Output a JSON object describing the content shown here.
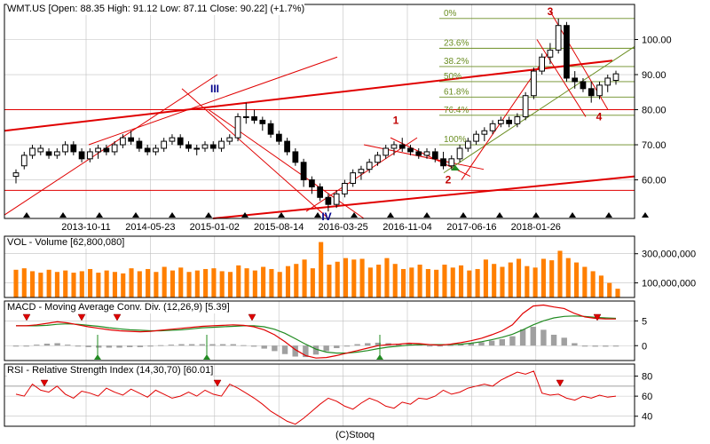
{
  "headers": {
    "price": "WMT.US [Open: 88.35 High: 91.12 Low: 87.11 Close: 90.22] (+1.7%)",
    "volume": "VOL - Volume [62,800,080]",
    "macd": "MACD - Moving Average Conv. Div. (12,26,9) [5.39]",
    "rsi": "RSI - Relative Strength Index (14,30,70) [60.01]"
  },
  "footer": "(C)Stooq",
  "colors": {
    "up": "#ffffff",
    "down": "#000000",
    "volume": "#ff7f00",
    "grid": "#c0c0c0",
    "trend": "#e00000",
    "fib": "#6b8e23",
    "macd": "#e00000",
    "signal": "#228b22",
    "hist": "#a0a0a0"
  },
  "chart_data": [
    {
      "type": "candlestick",
      "name": "WMT.US",
      "x_ticks": [
        "2013-10-11",
        "2014-05-23",
        "2015-01-02",
        "2015-08-14",
        "2016-03-25",
        "2016-11-04",
        "2017-06-16",
        "2018-01-26"
      ],
      "y_ticks": [
        60,
        70,
        80,
        90,
        100
      ],
      "ylim": [
        49,
        110
      ],
      "ohlc": [
        [
          61,
          63,
          59,
          62
        ],
        [
          64,
          68,
          63,
          67
        ],
        [
          67,
          70,
          66,
          69
        ],
        [
          68,
          70,
          67,
          69
        ],
        [
          68,
          69,
          66,
          67
        ],
        [
          67,
          69,
          66,
          68
        ],
        [
          68,
          71,
          67,
          70
        ],
        [
          70,
          71,
          67,
          68
        ],
        [
          68,
          69,
          65,
          66
        ],
        [
          66,
          69,
          65,
          68
        ],
        [
          68,
          70,
          66,
          69
        ],
        [
          69,
          70,
          67,
          68
        ],
        [
          68,
          71,
          67,
          70
        ],
        [
          70,
          73,
          69,
          72
        ],
        [
          72,
          74,
          70,
          71
        ],
        [
          71,
          72,
          68,
          69
        ],
        [
          69,
          70,
          67,
          68
        ],
        [
          68,
          70,
          67,
          69
        ],
        [
          69,
          72,
          68,
          71
        ],
        [
          71,
          73,
          70,
          72
        ],
        [
          72,
          73,
          69,
          70
        ],
        [
          70,
          71,
          68,
          69
        ],
        [
          69,
          70,
          67,
          69
        ],
        [
          69,
          71,
          68,
          70
        ],
        [
          70,
          71,
          68,
          69
        ],
        [
          69,
          72,
          68,
          71
        ],
        [
          71,
          73,
          70,
          72
        ],
        [
          72,
          79,
          71,
          78
        ],
        [
          78,
          82,
          76,
          78
        ],
        [
          78,
          80,
          76,
          77
        ],
        [
          77,
          78,
          74,
          76
        ],
        [
          76,
          77,
          72,
          73
        ],
        [
          73,
          74,
          70,
          71
        ],
        [
          71,
          72,
          67,
          68
        ],
        [
          68,
          69,
          64,
          65
        ],
        [
          65,
          66,
          58,
          60
        ],
        [
          60,
          61,
          56,
          58
        ],
        [
          58,
          59,
          54,
          55
        ],
        [
          55,
          56,
          51,
          53
        ],
        [
          53,
          57,
          52,
          56
        ],
        [
          56,
          60,
          55,
          59
        ],
        [
          59,
          63,
          58,
          62
        ],
        [
          62,
          64,
          60,
          63
        ],
        [
          63,
          66,
          62,
          65
        ],
        [
          65,
          68,
          64,
          67
        ],
        [
          67,
          70,
          66,
          69
        ],
        [
          69,
          71,
          67,
          70
        ],
        [
          70,
          72,
          68,
          69
        ],
        [
          69,
          70,
          67,
          68
        ],
        [
          68,
          69,
          66,
          67
        ],
        [
          67,
          69,
          66,
          68
        ],
        [
          68,
          69,
          65,
          66
        ],
        [
          66,
          68,
          63,
          64
        ],
        [
          64,
          67,
          63,
          66
        ],
        [
          66,
          70,
          65,
          69
        ],
        [
          69,
          72,
          68,
          71
        ],
        [
          71,
          74,
          70,
          73
        ],
        [
          73,
          75,
          71,
          74
        ],
        [
          74,
          77,
          73,
          76
        ],
        [
          76,
          78,
          75,
          77
        ],
        [
          77,
          78,
          75,
          76
        ],
        [
          76,
          79,
          75,
          78
        ],
        [
          78,
          85,
          77,
          84
        ],
        [
          84,
          92,
          83,
          91
        ],
        [
          91,
          96,
          90,
          95
        ],
        [
          95,
          99,
          93,
          97
        ],
        [
          97,
          106,
          96,
          104
        ],
        [
          104,
          105,
          88,
          89
        ],
        [
          89,
          91,
          86,
          88
        ],
        [
          88,
          89,
          85,
          86
        ],
        [
          86,
          88,
          82,
          84
        ],
        [
          84,
          88,
          83,
          87
        ],
        [
          87,
          90,
          85,
          89
        ],
        [
          88.35,
          91.12,
          87.11,
          90.22
        ]
      ],
      "annotations": [
        "1",
        "2",
        "3",
        "4",
        "III",
        "IV"
      ],
      "fibonacci": [
        {
          "label": "0%",
          "value": 106
        },
        {
          "label": "23.6%",
          "value": 97.5
        },
        {
          "label": "38.2%",
          "value": 92.3
        },
        {
          "label": "50%",
          "value": 88
        },
        {
          "label": "61.8%",
          "value": 83.6
        },
        {
          "label": "76.4%",
          "value": 78.4
        },
        {
          "label": "100%",
          "value": 70
        }
      ]
    },
    {
      "type": "bar",
      "name": "Volume",
      "y_ticks": [
        "100,000,000",
        "300,000,000"
      ],
      "tick_values": [
        100000000,
        300000000
      ],
      "ylim": [
        0,
        420000000
      ],
      "values": [
        190,
        200,
        180,
        170,
        190,
        175,
        185,
        170,
        180,
        195,
        170,
        185,
        175,
        165,
        200,
        180,
        195,
        175,
        210,
        185,
        205,
        175,
        185,
        195,
        200,
        180,
        175,
        220,
        200,
        185,
        210,
        195,
        175,
        215,
        230,
        260,
        200,
        380,
        225,
        245,
        270,
        260,
        265,
        205,
        225,
        270,
        230,
        195,
        205,
        225,
        195,
        190,
        225,
        205,
        220,
        185,
        195,
        260,
        230,
        210,
        240,
        265,
        215,
        205,
        265,
        255,
        320,
        270,
        240,
        210,
        180,
        150,
        100,
        60
      ]
    },
    {
      "type": "line",
      "name": "MACD",
      "y_ticks": [
        0,
        5
      ],
      "ylim": [
        -3,
        9
      ],
      "macd": [
        4,
        4,
        4.2,
        4.5,
        4.8,
        4.6,
        4.2,
        3.8,
        3.5,
        3.2,
        3,
        2.9,
        2.8,
        2.9,
        3.1,
        3.3,
        3.5,
        3.7,
        3.9,
        4,
        4.1,
        4.2,
        4.1,
        3.8,
        3.2,
        2.2,
        0.8,
        -0.8,
        -2,
        -2.5,
        -2.4,
        -2,
        -1.5,
        -1,
        -0.5,
        0,
        0.2,
        0.3,
        0.5,
        0.4,
        0.2,
        0.1,
        0.3,
        0.6,
        1,
        1.5,
        2.2,
        3,
        4.2,
        6.5,
        8,
        8.2,
        7.8,
        7.5,
        6.5,
        5.8,
        5.5,
        5.4,
        5.39
      ],
      "signal": [
        4,
        4,
        4,
        4.1,
        4.3,
        4.4,
        4.3,
        4.1,
        3.9,
        3.6,
        3.4,
        3.2,
        3.1,
        3,
        3,
        3.1,
        3.2,
        3.4,
        3.6,
        3.7,
        3.8,
        3.9,
        4,
        4,
        3.8,
        3.3,
        2.5,
        1.4,
        0.3,
        -0.7,
        -1.3,
        -1.5,
        -1.5,
        -1.3,
        -1,
        -0.6,
        -0.3,
        -0.1,
        0.1,
        0.2,
        0.2,
        0.2,
        0.2,
        0.3,
        0.5,
        0.8,
        1.2,
        1.7,
        2.3,
        3.2,
        4.2,
        5,
        5.6,
        5.9,
        6,
        5.9,
        5.7,
        5.6,
        5.5
      ],
      "histogram": [
        0,
        0,
        0.2,
        0.4,
        0.5,
        0.2,
        -0.1,
        -0.3,
        -0.4,
        -0.4,
        -0.4,
        -0.3,
        -0.3,
        -0.1,
        0.1,
        0.2,
        0.3,
        0.3,
        0.3,
        0.3,
        0.3,
        0.3,
        0.1,
        -0.2,
        -0.6,
        -1.1,
        -1.7,
        -2.2,
        -2.3,
        -1.8,
        -1.1,
        -0.5,
        0,
        0.3,
        0.5,
        0.6,
        0.5,
        0.4,
        0.4,
        0.2,
        0,
        -0.1,
        0.1,
        0.3,
        0.5,
        0.7,
        1,
        1.3,
        1.9,
        3.3,
        3.8,
        3.2,
        2.2,
        1.6,
        0.5,
        -0.1,
        -0.2,
        -0.2,
        -0.1
      ]
    },
    {
      "type": "line",
      "name": "RSI",
      "y_ticks": [
        40,
        60,
        80
      ],
      "ylim": [
        30,
        92
      ],
      "values": [
        62,
        60,
        72,
        66,
        64,
        70,
        62,
        58,
        65,
        63,
        60,
        68,
        64,
        61,
        67,
        63,
        59,
        66,
        62,
        58,
        60,
        64,
        60,
        66,
        62,
        60,
        72,
        68,
        63,
        58,
        52,
        45,
        40,
        35,
        32,
        38,
        45,
        52,
        58,
        55,
        50,
        47,
        53,
        58,
        55,
        50,
        48,
        54,
        52,
        58,
        57,
        60,
        66,
        62,
        64,
        68,
        70,
        72,
        70,
        76,
        80,
        84,
        82,
        85,
        63,
        61,
        62,
        58,
        56,
        60,
        58,
        61,
        59,
        60.01
      ]
    }
  ]
}
